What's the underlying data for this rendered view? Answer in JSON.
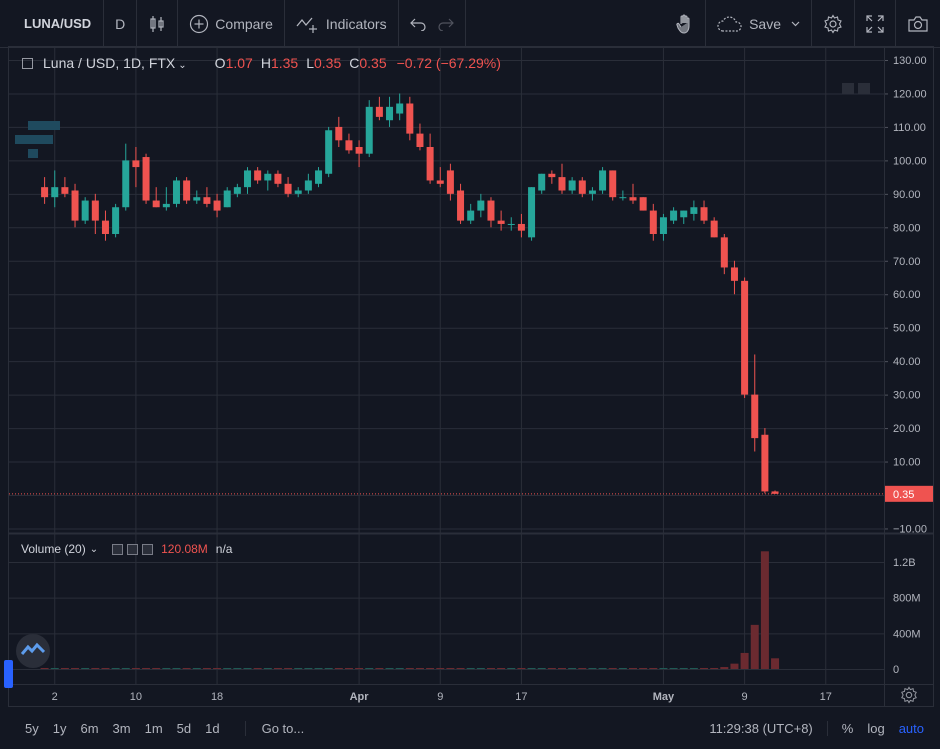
{
  "toolbar": {
    "symbol": "LUNA/USD",
    "interval": "D",
    "compare_label": "Compare",
    "indicators_label": "Indicators",
    "save_label": "Save"
  },
  "legend": {
    "title": "Luna / USD, 1D, FTX",
    "open_key": "O",
    "open": "1.07",
    "high_key": "H",
    "high": "1.35",
    "low_key": "L",
    "low": "0.35",
    "close_key": "C",
    "close": "0.35",
    "change": "−0.72 (−67.29%)"
  },
  "volume_legend": {
    "label": "Volume (20)",
    "value": "120.08M",
    "ma_value": "n/a"
  },
  "bottom": {
    "ranges": [
      "5y",
      "1y",
      "6m",
      "3m",
      "1m",
      "5d",
      "1d"
    ],
    "goto": "Go to...",
    "time": "11:29:38 (UTC+8)",
    "percent": "%",
    "log": "log",
    "auto": "auto"
  },
  "colors": {
    "up": "#26a69a",
    "down": "#ef5350",
    "bg": "#131722",
    "grid": "#2a2e39",
    "text": "#b2b5be"
  },
  "chart_data": {
    "type": "candlestick",
    "price_axis": {
      "min": -10,
      "max": 130,
      "step": 10,
      "labels": [
        "130.00",
        "120.00",
        "110.00",
        "100.00",
        "90.00",
        "80.00",
        "70.00",
        "60.00",
        "50.00",
        "40.00",
        "30.00",
        "20.00",
        "10.00",
        "0.00",
        "−10.00"
      ]
    },
    "last_price_label": "0.35",
    "last_price": 0.35,
    "volume_axis": {
      "labels": [
        "1.2B",
        "800M",
        "400M",
        "0"
      ],
      "values": [
        1200000000,
        800000000,
        400000000,
        0
      ],
      "max": 1500000000
    },
    "x_ticks": [
      {
        "label": "2",
        "index": 1
      },
      {
        "label": "10",
        "index": 9
      },
      {
        "label": "18",
        "index": 17
      },
      {
        "label": "Apr",
        "index": 31
      },
      {
        "label": "9",
        "index": 39
      },
      {
        "label": "17",
        "index": 47
      },
      {
        "label": "May",
        "index": 61
      },
      {
        "label": "9",
        "index": 69
      },
      {
        "label": "17",
        "index": 77
      }
    ],
    "candles": [
      {
        "o": 92,
        "h": 95,
        "l": 87,
        "c": 89
      },
      {
        "o": 89,
        "h": 97,
        "l": 86,
        "c": 92
      },
      {
        "o": 92,
        "h": 95,
        "l": 89,
        "c": 90
      },
      {
        "o": 91,
        "h": 93,
        "l": 80,
        "c": 82
      },
      {
        "o": 82,
        "h": 89,
        "l": 81,
        "c": 88
      },
      {
        "o": 88,
        "h": 90,
        "l": 78,
        "c": 82
      },
      {
        "o": 82,
        "h": 85,
        "l": 76,
        "c": 78
      },
      {
        "o": 78,
        "h": 87,
        "l": 77,
        "c": 86
      },
      {
        "o": 86,
        "h": 105,
        "l": 85,
        "c": 100
      },
      {
        "o": 100,
        "h": 104,
        "l": 92,
        "c": 98
      },
      {
        "o": 101,
        "h": 102,
        "l": 87,
        "c": 88
      },
      {
        "o": 88,
        "h": 92,
        "l": 86,
        "c": 86
      },
      {
        "o": 86,
        "h": 92,
        "l": 85,
        "c": 87
      },
      {
        "o": 87,
        "h": 95,
        "l": 86,
        "c": 94
      },
      {
        "o": 94,
        "h": 95,
        "l": 87,
        "c": 88
      },
      {
        "o": 88,
        "h": 91,
        "l": 87,
        "c": 89
      },
      {
        "o": 89,
        "h": 92,
        "l": 86,
        "c": 87
      },
      {
        "o": 88,
        "h": 90,
        "l": 83,
        "c": 85
      },
      {
        "o": 86,
        "h": 92,
        "l": 86,
        "c": 91
      },
      {
        "o": 90,
        "h": 93,
        "l": 89,
        "c": 92
      },
      {
        "o": 92,
        "h": 98,
        "l": 90,
        "c": 97
      },
      {
        "o": 97,
        "h": 98,
        "l": 93,
        "c": 94
      },
      {
        "o": 94,
        "h": 97,
        "l": 91,
        "c": 96
      },
      {
        "o": 96,
        "h": 97,
        "l": 92,
        "c": 93
      },
      {
        "o": 93,
        "h": 95,
        "l": 89,
        "c": 90
      },
      {
        "o": 90,
        "h": 92,
        "l": 89,
        "c": 91
      },
      {
        "o": 91,
        "h": 96,
        "l": 90,
        "c": 94
      },
      {
        "o": 93,
        "h": 98,
        "l": 92,
        "c": 97
      },
      {
        "o": 96,
        "h": 110,
        "l": 95,
        "c": 109
      },
      {
        "o": 110,
        "h": 113,
        "l": 104,
        "c": 106
      },
      {
        "o": 106,
        "h": 108,
        "l": 102,
        "c": 103
      },
      {
        "o": 104,
        "h": 106,
        "l": 98,
        "c": 102
      },
      {
        "o": 102,
        "h": 118,
        "l": 101,
        "c": 116
      },
      {
        "o": 116,
        "h": 119,
        "l": 112,
        "c": 113
      },
      {
        "o": 112,
        "h": 119,
        "l": 110,
        "c": 116
      },
      {
        "o": 114,
        "h": 120,
        "l": 112,
        "c": 117
      },
      {
        "o": 117,
        "h": 119,
        "l": 106,
        "c": 108
      },
      {
        "o": 108,
        "h": 111,
        "l": 103,
        "c": 104
      },
      {
        "o": 104,
        "h": 108,
        "l": 93,
        "c": 94
      },
      {
        "o": 94,
        "h": 98,
        "l": 92,
        "c": 93
      },
      {
        "o": 97,
        "h": 99,
        "l": 88,
        "c": 90
      },
      {
        "o": 91,
        "h": 93,
        "l": 81,
        "c": 82
      },
      {
        "o": 82,
        "h": 87,
        "l": 81,
        "c": 85
      },
      {
        "o": 85,
        "h": 90,
        "l": 83,
        "c": 88
      },
      {
        "o": 88,
        "h": 89,
        "l": 80,
        "c": 82
      },
      {
        "o": 82,
        "h": 85,
        "l": 79,
        "c": 81
      },
      {
        "o": 81,
        "h": 83,
        "l": 79,
        "c": 81
      },
      {
        "o": 81,
        "h": 84,
        "l": 77,
        "c": 79
      },
      {
        "o": 77,
        "h": 92,
        "l": 76,
        "c": 92
      },
      {
        "o": 91,
        "h": 96,
        "l": 90,
        "c": 96
      },
      {
        "o": 96,
        "h": 97,
        "l": 93,
        "c": 95
      },
      {
        "o": 95,
        "h": 99,
        "l": 90,
        "c": 91
      },
      {
        "o": 91,
        "h": 95,
        "l": 90,
        "c": 94
      },
      {
        "o": 94,
        "h": 95,
        "l": 89,
        "c": 90
      },
      {
        "o": 90,
        "h": 92,
        "l": 88,
        "c": 91
      },
      {
        "o": 91,
        "h": 98,
        "l": 90,
        "c": 97
      },
      {
        "o": 97,
        "h": 97,
        "l": 88,
        "c": 89
      },
      {
        "o": 89,
        "h": 91,
        "l": 88,
        "c": 89
      },
      {
        "o": 89,
        "h": 93,
        "l": 87,
        "c": 88
      },
      {
        "o": 89,
        "h": 89,
        "l": 85,
        "c": 85
      },
      {
        "o": 85,
        "h": 87,
        "l": 76,
        "c": 78
      },
      {
        "o": 78,
        "h": 84,
        "l": 76,
        "c": 83
      },
      {
        "o": 82,
        "h": 86,
        "l": 81,
        "c": 85
      },
      {
        "o": 83,
        "h": 85,
        "l": 81,
        "c": 85
      },
      {
        "o": 84,
        "h": 88,
        "l": 82,
        "c": 86
      },
      {
        "o": 86,
        "h": 88,
        "l": 81,
        "c": 82
      },
      {
        "o": 82,
        "h": 83,
        "l": 77,
        "c": 77
      },
      {
        "o": 77,
        "h": 78,
        "l": 66,
        "c": 68
      },
      {
        "o": 68,
        "h": 70,
        "l": 60,
        "c": 64
      },
      {
        "o": 64,
        "h": 65,
        "l": 29,
        "c": 30
      },
      {
        "o": 30,
        "h": 42,
        "l": 13,
        "c": 17
      },
      {
        "o": 18,
        "h": 20,
        "l": 0.5,
        "c": 1.07
      },
      {
        "o": 1.07,
        "h": 1.35,
        "l": 0.35,
        "c": 0.35
      }
    ],
    "volumes": [
      3,
      3,
      3,
      3,
      3,
      3,
      3,
      3,
      5,
      4,
      5,
      3,
      3,
      4,
      3,
      3,
      3,
      3,
      3,
      3,
      4,
      3,
      3,
      3,
      3,
      3,
      3,
      4,
      6,
      6,
      4,
      4,
      6,
      5,
      5,
      5,
      6,
      5,
      7,
      5,
      8,
      7,
      5,
      5,
      5,
      5,
      4,
      4,
      6,
      5,
      4,
      4,
      4,
      4,
      4,
      5,
      5,
      4,
      4,
      4,
      6,
      4,
      4,
      4,
      4,
      5,
      8,
      22,
      60,
      180,
      495,
      1320,
      120
    ]
  }
}
